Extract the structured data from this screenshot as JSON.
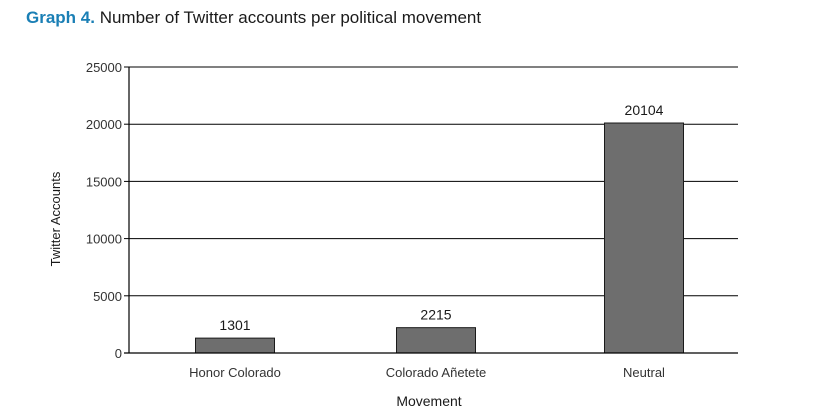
{
  "figure": {
    "label": "Graph 4.",
    "caption": "Number of Twitter accounts per political movement"
  },
  "chart_data": {
    "type": "bar",
    "categories": [
      "Honor Colorado",
      "Colorado Añetete",
      "Neutral"
    ],
    "values": [
      1301,
      2215,
      20104
    ],
    "data_labels": [
      "1301",
      "2215",
      "20104"
    ],
    "title": "Number of Twitter accounts per political movement",
    "xlabel": "Movement",
    "ylabel": "Twitter Accounts",
    "ylim": [
      0,
      25000
    ],
    "yticks": [
      0,
      5000,
      10000,
      15000,
      20000,
      25000
    ],
    "grid": true,
    "legend": "none",
    "colors": {
      "bar_fill": "#6e6e6e",
      "bar_stroke": "#1a1a1a",
      "grid": "#000000",
      "title_label": "#1a7fb5"
    }
  }
}
